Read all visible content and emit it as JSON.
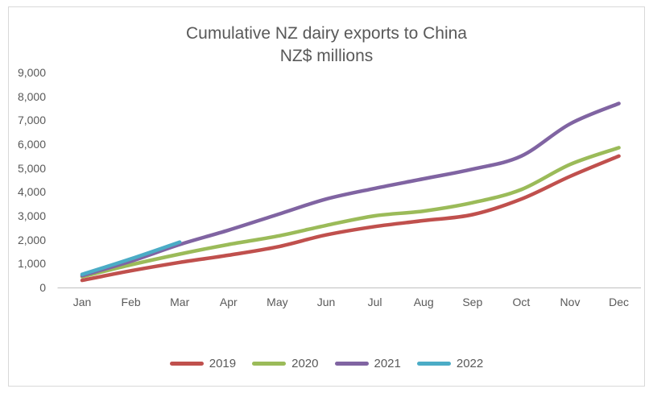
{
  "chart_data": {
    "type": "line",
    "title": "Cumulative NZ dairy exports to China",
    "subtitle": "NZ$ millions",
    "categories": [
      "Jan",
      "Feb",
      "Mar",
      "Apr",
      "May",
      "Jun",
      "Jul",
      "Aug",
      "Sep",
      "Oct",
      "Nov",
      "Dec"
    ],
    "series": [
      {
        "name": "2019",
        "color": "#C0504D",
        "values": [
          300,
          700,
          1050,
          1350,
          1700,
          2200,
          2550,
          2800,
          3050,
          3700,
          4650,
          5500
        ]
      },
      {
        "name": "2020",
        "color": "#9BBB59",
        "values": [
          450,
          950,
          1400,
          1800,
          2150,
          2600,
          3000,
          3200,
          3550,
          4100,
          5150,
          5850
        ]
      },
      {
        "name": "2021",
        "color": "#8064A2",
        "values": [
          500,
          1100,
          1800,
          2400,
          3050,
          3700,
          4150,
          4550,
          4950,
          5500,
          6850,
          7700
        ]
      },
      {
        "name": "2022",
        "color": "#4BACC6",
        "values": [
          550,
          1200,
          1900
        ]
      }
    ],
    "ylim": [
      0,
      9000
    ],
    "ytick_step": 1000,
    "ytick_labels": [
      "0",
      "1,000",
      "2,000",
      "3,000",
      "4,000",
      "5,000",
      "6,000",
      "7,000",
      "8,000",
      "9,000"
    ],
    "grid": false,
    "smoothed": true,
    "legend_position": "bottom"
  },
  "colors": {
    "text": "#595959",
    "axis_line": "#c0c0c0",
    "chart_border": "#d9d9d9",
    "background": "#ffffff"
  }
}
